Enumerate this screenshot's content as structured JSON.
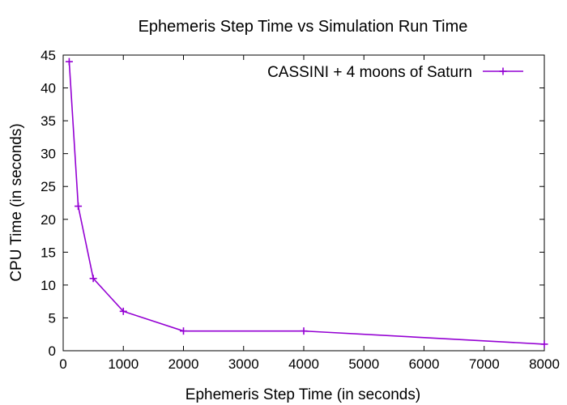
{
  "chart_data": {
    "type": "line",
    "title": "Ephemeris Step Time vs Simulation Run Time",
    "xlabel": "Ephemeris Step Time (in seconds)",
    "ylabel": "CPU Time (in seconds)",
    "xlim": [
      0,
      8000
    ],
    "ylim": [
      0,
      45
    ],
    "xticks": [
      0,
      1000,
      2000,
      3000,
      4000,
      5000,
      6000,
      7000,
      8000
    ],
    "yticks": [
      0,
      5,
      10,
      15,
      20,
      25,
      30,
      35,
      40,
      45
    ],
    "grid": false,
    "legend_position": "top-right",
    "series": [
      {
        "name": "CASSINI + 4 moons of Saturn",
        "color": "#9400d3",
        "marker": "plus",
        "x": [
          100,
          250,
          500,
          1000,
          2000,
          4000,
          8000
        ],
        "y": [
          44,
          22,
          11,
          6,
          3,
          3,
          1
        ]
      }
    ]
  }
}
